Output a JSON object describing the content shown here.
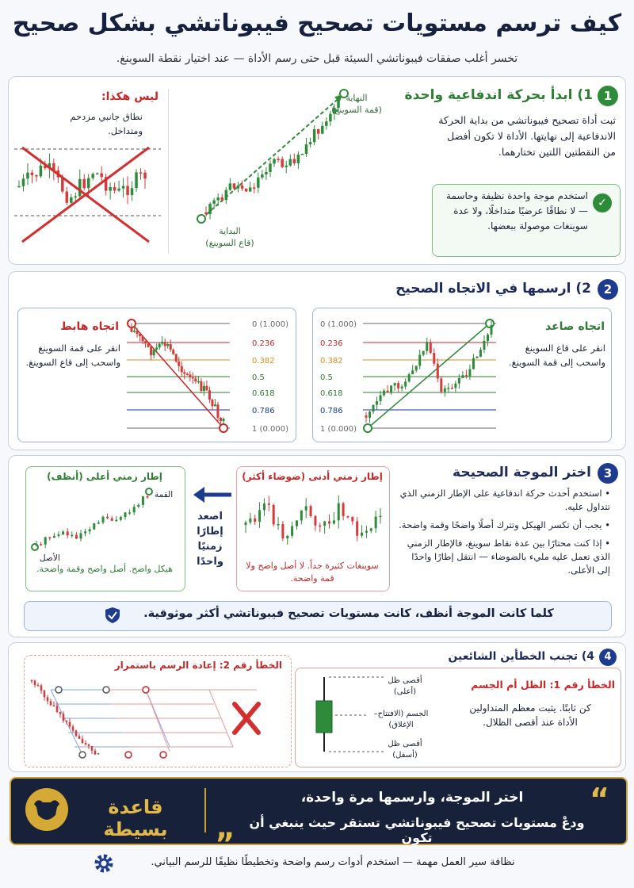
{
  "header": {
    "title": "كيف ترسم مستويات تصحيح فيبوناتشي بشكل صحيح",
    "subtitle": "تخسر أغلب صفقات فيبوناتشي السيئة قبل حتى رسم الأداة — عند اختيار نقطة السوينغ."
  },
  "step1": {
    "number": "1",
    "heading": "1) ابدأ بحركة اندفاعية واحدة",
    "text": "ثبت أداة تصحيح فيبوناتشي من بداية الحركة الاندفاعية إلى نهايتها. الأداة لا تكون أفضل من النقطتين اللتين تختارهما.",
    "tip": "استخدم موجة واحدة نظيفة وحاسمة — لا نطاقًا عرضيًا متداخلًا، ولا عدة سوينغات موصولة ببعضها.",
    "end_label": "النهاية",
    "end_sub": "(قمة السوينغ)",
    "start_label": "البداية",
    "start_sub": "(قاع السوينغ)",
    "wrong_title": "ليس هكذا:",
    "wrong_text": "نطاق جانبي مزدحم ومتداخل."
  },
  "step2": {
    "number": "2",
    "heading": "2) ارسمها في الاتجاه الصحيح",
    "uptrend": {
      "title": "اتجاه صاعد",
      "text": "انقر على قاع السوينغ واسحب إلى قمة السوينغ.",
      "levels": [
        "0 (1.000)",
        "0.236",
        "0.382",
        "0.5",
        "0.618",
        "0.786",
        "1 (0.000)"
      ]
    },
    "downtrend": {
      "title": "اتجاه هابط",
      "text": "انقر على قمة السوينغ واسحب إلى قاع السوينغ.",
      "levels": [
        "0 (1.000)",
        "0.236",
        "0.382",
        "0.5",
        "0.618",
        "0.786",
        "1 (0.000)"
      ]
    }
  },
  "step3": {
    "number": "3",
    "heading": "اختر الموجة الصحيحة",
    "bullets": [
      "استخدم أحدث حركة اندفاعية على الإطار الزمني الذي تتداول عليه.",
      "يجب أن تكسر الهيكل وتترك أصلًا واضحًا وقمة واضحة.",
      "إذا كنت محتارًا بين عدة نقاط سوينغ، فالإطار الزمني الذي تعمل عليه مليء بالضوضاء — انتقل إطارًا واحدًا إلى الأعلى."
    ],
    "lower_tf": {
      "title": "إطار زمني أدنى (ضوضاء أكثر)",
      "text": "سوينغات كثيرة جداً. لا أصل واضح ولا قمة واضحة."
    },
    "arrow_label": "اصعد إطارًا زمنيًا واحدًا",
    "higher_tf": {
      "title": "إطار زمني أعلى (أنظف)",
      "top_label": "القمة",
      "origin_label": "الأصل",
      "text": "هيكل واضح. أصل واضح وقمة واضحة."
    },
    "banner": "كلما كانت الموجة أنظف، كانت مستويات تصحيح فيبوناتشي أكثر موثوقية."
  },
  "step4": {
    "number": "4",
    "heading": "4) تجنب الخطأين الشائعين",
    "mistake1": {
      "title": "الخطأ رقم 1: الظل أم الجسم",
      "text": "كن ثابتًا. يثبت معظم المتداولين الأداة عند أقصى الظلال.",
      "wick_top": "أقصى ظل (أعلى)",
      "body": "الجسم (الافتتاح–الإغلاق)",
      "wick_bottom": "أقصى ظل (أسفل)"
    },
    "mistake2": {
      "title": "الخطأ رقم 2: إعادة الرسم باستمرار"
    }
  },
  "rule": {
    "label": "قاعدة بسيطة",
    "quote_line1": "اختر الموجة، وارسمها مرة واحدة،",
    "quote_line2": "ودعْ مستويات تصحيح فيبوناتشي تستقر حيث ينبغي أن تكون"
  },
  "footer": {
    "text": "نظافة سير العمل مهمة — استخدم أدوات رسم واضحة وتخطيطًا نظيفًا للرسم البياني."
  }
}
